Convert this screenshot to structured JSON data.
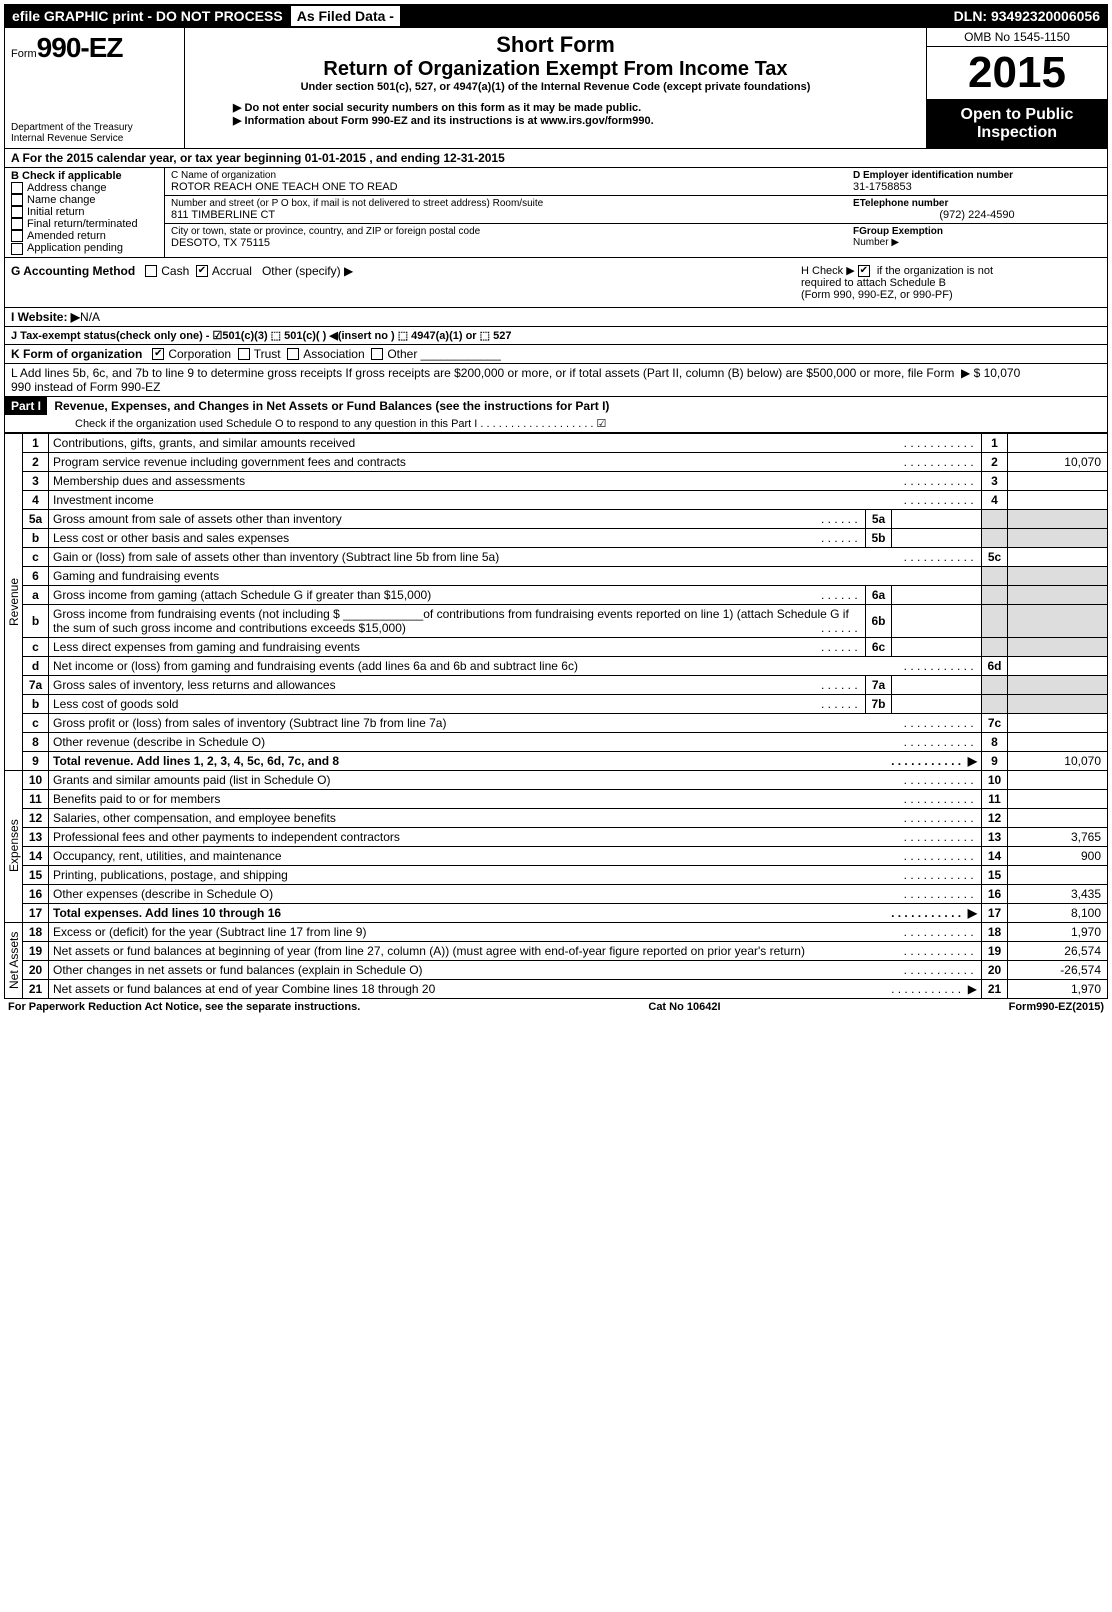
{
  "topbar": {
    "efile": "efile GRAPHIC print - DO NOT PROCESS",
    "asfiled": "As Filed Data -",
    "dln": "DLN: 93492320006056"
  },
  "header": {
    "form_prefix": "Form",
    "form_no": "990-EZ",
    "dept1": "Department of the Treasury",
    "dept2": "Internal Revenue Service",
    "short": "Short Form",
    "title": "Return of Organization Exempt From Income Tax",
    "sub": "Under section 501(c), 527, or 4947(a)(1) of the Internal Revenue Code (except private foundations)",
    "note1": "▶ Do not enter social security numbers on this form as it may be made public.",
    "note2_a": "▶ Information about Form 990-EZ and its instructions is at ",
    "note2_link": "www.irs.gov/form990",
    "note2_b": ".",
    "omb": "OMB No 1545-1150",
    "year": "2015",
    "inspection1": "Open to Public",
    "inspection2": "Inspection"
  },
  "sectA": "A  For the 2015 calendar year, or tax year beginning 01-01-2015                       , and ending 12-31-2015",
  "sectB": {
    "hdr": "B  Check if applicable",
    "items": [
      "Address change",
      "Name change",
      "Initial return",
      "Final return/terminated",
      "Amended return",
      "Application pending"
    ]
  },
  "sectC": {
    "c_lbl": "C Name of organization",
    "c_val": "ROTOR REACH ONE TEACH ONE TO READ",
    "addr_lbl": "Number and street (or P O box, if mail is not delivered to street address) Room/suite",
    "addr_val": "811 TIMBERLINE CT",
    "city_lbl": "City or town, state or province, country, and ZIP or foreign postal code",
    "city_val": "DESOTO, TX 75115"
  },
  "sectD": {
    "d_lbl": "D Employer identification number",
    "d_val": "31-1758853",
    "e_lbl": "ETelephone number",
    "e_val": "(972) 224-4590",
    "f_lbl": "FGroup Exemption",
    "f_lbl2": "Number    ▶"
  },
  "sectG": {
    "g": "G Accounting Method",
    "cash": "Cash",
    "accrual": "Accrual",
    "other": "Other (specify) ▶",
    "h1": "H   Check ▶",
    "h2": "if the organization is not",
    "h3": "required to attach Schedule B",
    "h4": "(Form 990, 990-EZ, or 990-PF)"
  },
  "sectI": {
    "lbl": "I Website: ▶",
    "val": "N/A"
  },
  "sectJ": "J Tax-exempt status(check only one) - ☑501(c)(3) ⬚ 501(c)( ) ◀(insert no ) ⬚ 4947(a)(1) or ⬚ 527",
  "sectK": {
    "lbl": "K Form of organization",
    "corp": "Corporation",
    "trust": "Trust",
    "assoc": "Association",
    "other": "Other"
  },
  "sectL": {
    "text": "L Add lines 5b, 6c, and 7b to line 9 to determine gross receipts  If gross receipts are $200,000 or more, or if total assets (Part II, column (B) below) are $500,000 or more, file Form 990 instead of Form 990-EZ",
    "arrow": "▶ $ 10,070"
  },
  "part1": {
    "hdr": "Part I",
    "title": "Revenue, Expenses, and Changes in Net Assets or Fund Balances (see the instructions for Part I)",
    "check": "Check if the organization used Schedule O to respond to any question in this Part I  . . . . . . . . . . . . . . . . . . . ☑"
  },
  "sections": {
    "rev": "Revenue",
    "exp": "Expenses",
    "net": "Net Assets"
  },
  "lines": [
    {
      "n": "1",
      "t": "Contributions, gifts, grants, and similar amounts received",
      "r": "1",
      "a": ""
    },
    {
      "n": "2",
      "t": "Program service revenue including government fees and contracts",
      "r": "2",
      "a": "10,070"
    },
    {
      "n": "3",
      "t": "Membership dues and assessments",
      "r": "3",
      "a": ""
    },
    {
      "n": "4",
      "t": "Investment income",
      "r": "4",
      "a": ""
    },
    {
      "n": "5a",
      "t": "Gross amount from sale of assets other than inventory",
      "sub": "5a"
    },
    {
      "n": "b",
      "t": "Less cost or other basis and sales expenses",
      "sub": "5b"
    },
    {
      "n": "c",
      "t": "Gain or (loss) from sale of assets other than inventory (Subtract line 5b from line 5a)",
      "r": "5c",
      "a": ""
    },
    {
      "n": "6",
      "t": "Gaming and fundraising events"
    },
    {
      "n": "a",
      "t": "Gross income from gaming (attach Schedule G if greater than $15,000)",
      "sub": "6a"
    },
    {
      "n": "b",
      "t": "Gross income from fundraising events (not including $ ____________of contributions from fundraising events reported on line 1) (attach Schedule G if the sum of such gross income and contributions exceeds $15,000)",
      "sub": "6b"
    },
    {
      "n": "c",
      "t": "Less direct expenses from gaming and fundraising events",
      "sub": "6c"
    },
    {
      "n": "d",
      "t": "Net income or (loss) from gaming and fundraising events (add lines 6a and 6b and subtract line 6c)",
      "r": "6d",
      "a": ""
    },
    {
      "n": "7a",
      "t": "Gross sales of inventory, less returns and allowances",
      "sub": "7a"
    },
    {
      "n": "b",
      "t": "Less cost of goods sold",
      "sub": "7b"
    },
    {
      "n": "c",
      "t": "Gross profit or (loss) from sales of inventory (Subtract line 7b from line 7a)",
      "r": "7c",
      "a": ""
    },
    {
      "n": "8",
      "t": "Other revenue (describe in Schedule O)",
      "r": "8",
      "a": ""
    },
    {
      "n": "9",
      "t": "Total revenue. Add lines 1, 2, 3, 4, 5c, 6d, 7c, and 8",
      "r": "9",
      "a": "10,070",
      "bold": true,
      "arrow": true
    }
  ],
  "exp_lines": [
    {
      "n": "10",
      "t": "Grants and similar amounts paid (list in Schedule O)",
      "r": "10",
      "a": ""
    },
    {
      "n": "11",
      "t": "Benefits paid to or for members",
      "r": "11",
      "a": ""
    },
    {
      "n": "12",
      "t": "Salaries, other compensation, and employee benefits",
      "r": "12",
      "a": ""
    },
    {
      "n": "13",
      "t": "Professional fees and other payments to independent contractors",
      "r": "13",
      "a": "3,765"
    },
    {
      "n": "14",
      "t": "Occupancy, rent, utilities, and maintenance",
      "r": "14",
      "a": "900"
    },
    {
      "n": "15",
      "t": "Printing, publications, postage, and shipping",
      "r": "15",
      "a": ""
    },
    {
      "n": "16",
      "t": "Other expenses (describe in Schedule O)",
      "r": "16",
      "a": "3,435"
    },
    {
      "n": "17",
      "t": "Total expenses. Add lines 10 through 16",
      "r": "17",
      "a": "8,100",
      "bold": true,
      "arrow": true
    }
  ],
  "net_lines": [
    {
      "n": "18",
      "t": "Excess or (deficit) for the year (Subtract line 17 from line 9)",
      "r": "18",
      "a": "1,970"
    },
    {
      "n": "19",
      "t": "Net assets or fund balances at beginning of year (from line 27, column (A)) (must agree with end-of-year figure reported on prior year's return)",
      "r": "19",
      "a": "26,574"
    },
    {
      "n": "20",
      "t": "Other changes in net assets or fund balances (explain in Schedule O)",
      "r": "20",
      "a": "-26,574"
    },
    {
      "n": "21",
      "t": "Net assets or fund balances at end of year  Combine lines 18 through 20",
      "r": "21",
      "a": "1,970",
      "arrow": true
    }
  ],
  "footer": {
    "left": "For Paperwork Reduction Act Notice, see the separate instructions.",
    "mid": "Cat No 10642I",
    "right": "Form 990-EZ (2015)"
  }
}
